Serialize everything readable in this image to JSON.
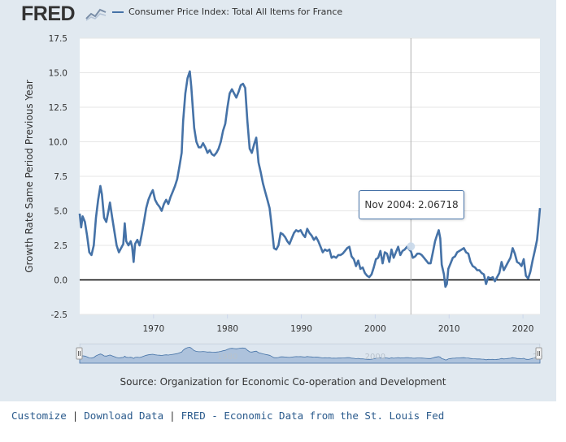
{
  "header": {
    "logo_text": "FRED",
    "legend_label": "Consumer Price Index: Total All Items for France"
  },
  "colors": {
    "line": "#4572a7",
    "frame_bg": "#e1e9f0",
    "navigator_fill": "#c5d3e8",
    "link": "#2a5a8c"
  },
  "tooltip": {
    "label": "Nov 2004:",
    "value": "2.06718",
    "x_year": 2004.83
  },
  "source_text": "Source: Organization for Economic Co-operation and Development",
  "footer": {
    "links": [
      "Customize",
      "Download Data",
      "FRED - Economic Data from the St. Louis Fed"
    ],
    "separator": "|"
  },
  "navigator": {
    "labels": [
      {
        "text": "1980",
        "year": 1980
      },
      {
        "text": "2000",
        "year": 2000
      },
      {
        "text": "20",
        "year": 2022
      }
    ]
  },
  "chart_data": {
    "type": "line",
    "title": "Consumer Price Index: Total All Items for France",
    "xlabel": "",
    "ylabel": "Growth Rate Same Period Previous Year",
    "xlim": [
      1960,
      2022.3
    ],
    "ylim": [
      -2.5,
      17.5
    ],
    "yticks": [
      {
        "value": 17.5,
        "label": "17.5"
      },
      {
        "value": 15.0,
        "label": "15.0"
      },
      {
        "value": 12.5,
        "label": "12.5"
      },
      {
        "value": 10.0,
        "label": "10.0"
      },
      {
        "value": 7.5,
        "label": "7.5"
      },
      {
        "value": 5.0,
        "label": "5.0"
      },
      {
        "value": 2.5,
        "label": "2.5"
      },
      {
        "value": 0.0,
        "label": "0.0"
      },
      {
        "value": -2.5,
        "label": "-2.5"
      }
    ],
    "xticks": [
      {
        "value": 1970,
        "label": "1970"
      },
      {
        "value": 1980,
        "label": "1980"
      },
      {
        "value": 1990,
        "label": "1990"
      },
      {
        "value": 2000,
        "label": "2000"
      },
      {
        "value": 2010,
        "label": "2010"
      },
      {
        "value": 2020,
        "label": "2020"
      }
    ],
    "series": [
      {
        "name": "Consumer Price Index: Total All Items for France",
        "points": [
          [
            1960.0,
            4.8
          ],
          [
            1960.2,
            3.8
          ],
          [
            1960.4,
            4.6
          ],
          [
            1960.7,
            4.2
          ],
          [
            1961.0,
            3.2
          ],
          [
            1961.3,
            2.0
          ],
          [
            1961.6,
            1.8
          ],
          [
            1961.9,
            2.5
          ],
          [
            1962.2,
            4.5
          ],
          [
            1962.5,
            5.8
          ],
          [
            1962.8,
            6.8
          ],
          [
            1963.0,
            6.2
          ],
          [
            1963.3,
            4.5
          ],
          [
            1963.6,
            4.2
          ],
          [
            1963.9,
            5.0
          ],
          [
            1964.1,
            5.6
          ],
          [
            1964.4,
            4.5
          ],
          [
            1964.7,
            3.5
          ],
          [
            1965.0,
            2.5
          ],
          [
            1965.3,
            2.0
          ],
          [
            1965.6,
            2.3
          ],
          [
            1965.9,
            2.6
          ],
          [
            1966.1,
            4.1
          ],
          [
            1966.3,
            2.8
          ],
          [
            1966.6,
            2.5
          ],
          [
            1966.9,
            2.8
          ],
          [
            1967.1,
            2.4
          ],
          [
            1967.3,
            1.3
          ],
          [
            1967.5,
            2.6
          ],
          [
            1967.8,
            2.9
          ],
          [
            1968.1,
            2.5
          ],
          [
            1968.4,
            3.3
          ],
          [
            1968.7,
            4.2
          ],
          [
            1969.0,
            5.2
          ],
          [
            1969.3,
            5.8
          ],
          [
            1969.6,
            6.2
          ],
          [
            1969.9,
            6.5
          ],
          [
            1970.2,
            5.8
          ],
          [
            1970.5,
            5.5
          ],
          [
            1970.8,
            5.3
          ],
          [
            1971.1,
            5.0
          ],
          [
            1971.4,
            5.5
          ],
          [
            1971.7,
            5.8
          ],
          [
            1972.0,
            5.5
          ],
          [
            1972.3,
            6.0
          ],
          [
            1972.6,
            6.4
          ],
          [
            1972.9,
            6.8
          ],
          [
            1973.2,
            7.3
          ],
          [
            1973.5,
            8.2
          ],
          [
            1973.8,
            9.2
          ],
          [
            1974.0,
            11.5
          ],
          [
            1974.3,
            13.5
          ],
          [
            1974.6,
            14.6
          ],
          [
            1974.9,
            15.1
          ],
          [
            1975.1,
            14.0
          ],
          [
            1975.3,
            12.5
          ],
          [
            1975.5,
            11.0
          ],
          [
            1975.8,
            10.0
          ],
          [
            1976.1,
            9.6
          ],
          [
            1976.4,
            9.6
          ],
          [
            1976.7,
            9.9
          ],
          [
            1977.0,
            9.6
          ],
          [
            1977.3,
            9.2
          ],
          [
            1977.6,
            9.4
          ],
          [
            1977.9,
            9.1
          ],
          [
            1978.2,
            9.0
          ],
          [
            1978.5,
            9.2
          ],
          [
            1978.8,
            9.5
          ],
          [
            1979.1,
            10.0
          ],
          [
            1979.4,
            10.8
          ],
          [
            1979.7,
            11.3
          ],
          [
            1980.0,
            12.5
          ],
          [
            1980.3,
            13.5
          ],
          [
            1980.6,
            13.8
          ],
          [
            1980.9,
            13.5
          ],
          [
            1981.2,
            13.2
          ],
          [
            1981.5,
            13.6
          ],
          [
            1981.8,
            14.1
          ],
          [
            1982.1,
            14.2
          ],
          [
            1982.4,
            13.9
          ],
          [
            1982.7,
            11.5
          ],
          [
            1983.0,
            9.5
          ],
          [
            1983.3,
            9.2
          ],
          [
            1983.6,
            9.8
          ],
          [
            1983.9,
            10.3
          ],
          [
            1984.2,
            8.5
          ],
          [
            1984.5,
            7.8
          ],
          [
            1984.8,
            7.0
          ],
          [
            1985.1,
            6.4
          ],
          [
            1985.4,
            5.8
          ],
          [
            1985.7,
            5.2
          ],
          [
            1985.9,
            4.3
          ],
          [
            1986.1,
            3.3
          ],
          [
            1986.3,
            2.3
          ],
          [
            1986.6,
            2.2
          ],
          [
            1986.9,
            2.5
          ],
          [
            1987.2,
            3.4
          ],
          [
            1987.5,
            3.3
          ],
          [
            1987.8,
            3.1
          ],
          [
            1988.1,
            2.8
          ],
          [
            1988.4,
            2.6
          ],
          [
            1988.7,
            3.0
          ],
          [
            1989.0,
            3.4
          ],
          [
            1989.3,
            3.6
          ],
          [
            1989.6,
            3.5
          ],
          [
            1989.9,
            3.6
          ],
          [
            1990.2,
            3.3
          ],
          [
            1990.5,
            3.1
          ],
          [
            1990.8,
            3.7
          ],
          [
            1991.1,
            3.4
          ],
          [
            1991.4,
            3.2
          ],
          [
            1991.7,
            2.9
          ],
          [
            1992.0,
            3.1
          ],
          [
            1992.3,
            2.8
          ],
          [
            1992.6,
            2.4
          ],
          [
            1992.9,
            2.0
          ],
          [
            1993.2,
            2.2
          ],
          [
            1993.5,
            2.1
          ],
          [
            1993.8,
            2.2
          ],
          [
            1994.1,
            1.6
          ],
          [
            1994.4,
            1.7
          ],
          [
            1994.7,
            1.6
          ],
          [
            1995.0,
            1.8
          ],
          [
            1995.3,
            1.8
          ],
          [
            1995.6,
            1.9
          ],
          [
            1995.9,
            2.1
          ],
          [
            1996.2,
            2.3
          ],
          [
            1996.5,
            2.4
          ],
          [
            1996.8,
            1.7
          ],
          [
            1997.1,
            1.5
          ],
          [
            1997.4,
            1.0
          ],
          [
            1997.7,
            1.4
          ],
          [
            1998.0,
            0.8
          ],
          [
            1998.3,
            0.9
          ],
          [
            1998.6,
            0.5
          ],
          [
            1998.9,
            0.3
          ],
          [
            1999.2,
            0.2
          ],
          [
            1999.5,
            0.4
          ],
          [
            1999.8,
            0.9
          ],
          [
            2000.1,
            1.5
          ],
          [
            2000.4,
            1.6
          ],
          [
            2000.7,
            2.1
          ],
          [
            2001.0,
            1.2
          ],
          [
            2001.3,
            2.0
          ],
          [
            2001.6,
            1.9
          ],
          [
            2001.9,
            1.3
          ],
          [
            2002.2,
            2.2
          ],
          [
            2002.5,
            1.6
          ],
          [
            2002.8,
            2.0
          ],
          [
            2003.1,
            2.4
          ],
          [
            2003.4,
            1.8
          ],
          [
            2003.7,
            2.1
          ],
          [
            2004.0,
            2.2
          ],
          [
            2004.3,
            2.4
          ],
          [
            2004.6,
            2.2
          ],
          [
            2004.83,
            2.07
          ],
          [
            2005.1,
            1.6
          ],
          [
            2005.4,
            1.7
          ],
          [
            2005.7,
            1.9
          ],
          [
            2006.0,
            1.9
          ],
          [
            2006.3,
            1.8
          ],
          [
            2006.6,
            1.6
          ],
          [
            2006.9,
            1.4
          ],
          [
            2007.2,
            1.2
          ],
          [
            2007.5,
            1.2
          ],
          [
            2007.8,
            2.0
          ],
          [
            2008.1,
            2.8
          ],
          [
            2008.4,
            3.3
          ],
          [
            2008.6,
            3.6
          ],
          [
            2008.8,
            3.0
          ],
          [
            2009.0,
            1.1
          ],
          [
            2009.3,
            0.4
          ],
          [
            2009.5,
            -0.5
          ],
          [
            2009.7,
            -0.3
          ],
          [
            2009.9,
            0.8
          ],
          [
            2010.2,
            1.2
          ],
          [
            2010.5,
            1.6
          ],
          [
            2010.8,
            1.7
          ],
          [
            2011.1,
            2.0
          ],
          [
            2011.4,
            2.1
          ],
          [
            2011.7,
            2.2
          ],
          [
            2012.0,
            2.3
          ],
          [
            2012.3,
            2.0
          ],
          [
            2012.6,
            1.9
          ],
          [
            2012.9,
            1.3
          ],
          [
            2013.2,
            1.0
          ],
          [
            2013.5,
            0.9
          ],
          [
            2013.8,
            0.7
          ],
          [
            2014.1,
            0.7
          ],
          [
            2014.4,
            0.5
          ],
          [
            2014.7,
            0.4
          ],
          [
            2015.0,
            -0.3
          ],
          [
            2015.3,
            0.2
          ],
          [
            2015.6,
            0.1
          ],
          [
            2015.9,
            0.2
          ],
          [
            2016.2,
            -0.1
          ],
          [
            2016.5,
            0.2
          ],
          [
            2016.8,
            0.5
          ],
          [
            2017.1,
            1.3
          ],
          [
            2017.4,
            0.7
          ],
          [
            2017.7,
            1.0
          ],
          [
            2018.0,
            1.3
          ],
          [
            2018.3,
            1.6
          ],
          [
            2018.6,
            2.3
          ],
          [
            2018.9,
            1.9
          ],
          [
            2019.2,
            1.3
          ],
          [
            2019.5,
            1.2
          ],
          [
            2019.8,
            1.0
          ],
          [
            2020.1,
            1.5
          ],
          [
            2020.4,
            0.3
          ],
          [
            2020.7,
            0.1
          ],
          [
            2021.0,
            0.6
          ],
          [
            2021.3,
            1.4
          ],
          [
            2021.6,
            2.1
          ],
          [
            2021.9,
            2.9
          ],
          [
            2022.1,
            4.0
          ],
          [
            2022.3,
            5.2
          ]
        ]
      }
    ]
  }
}
